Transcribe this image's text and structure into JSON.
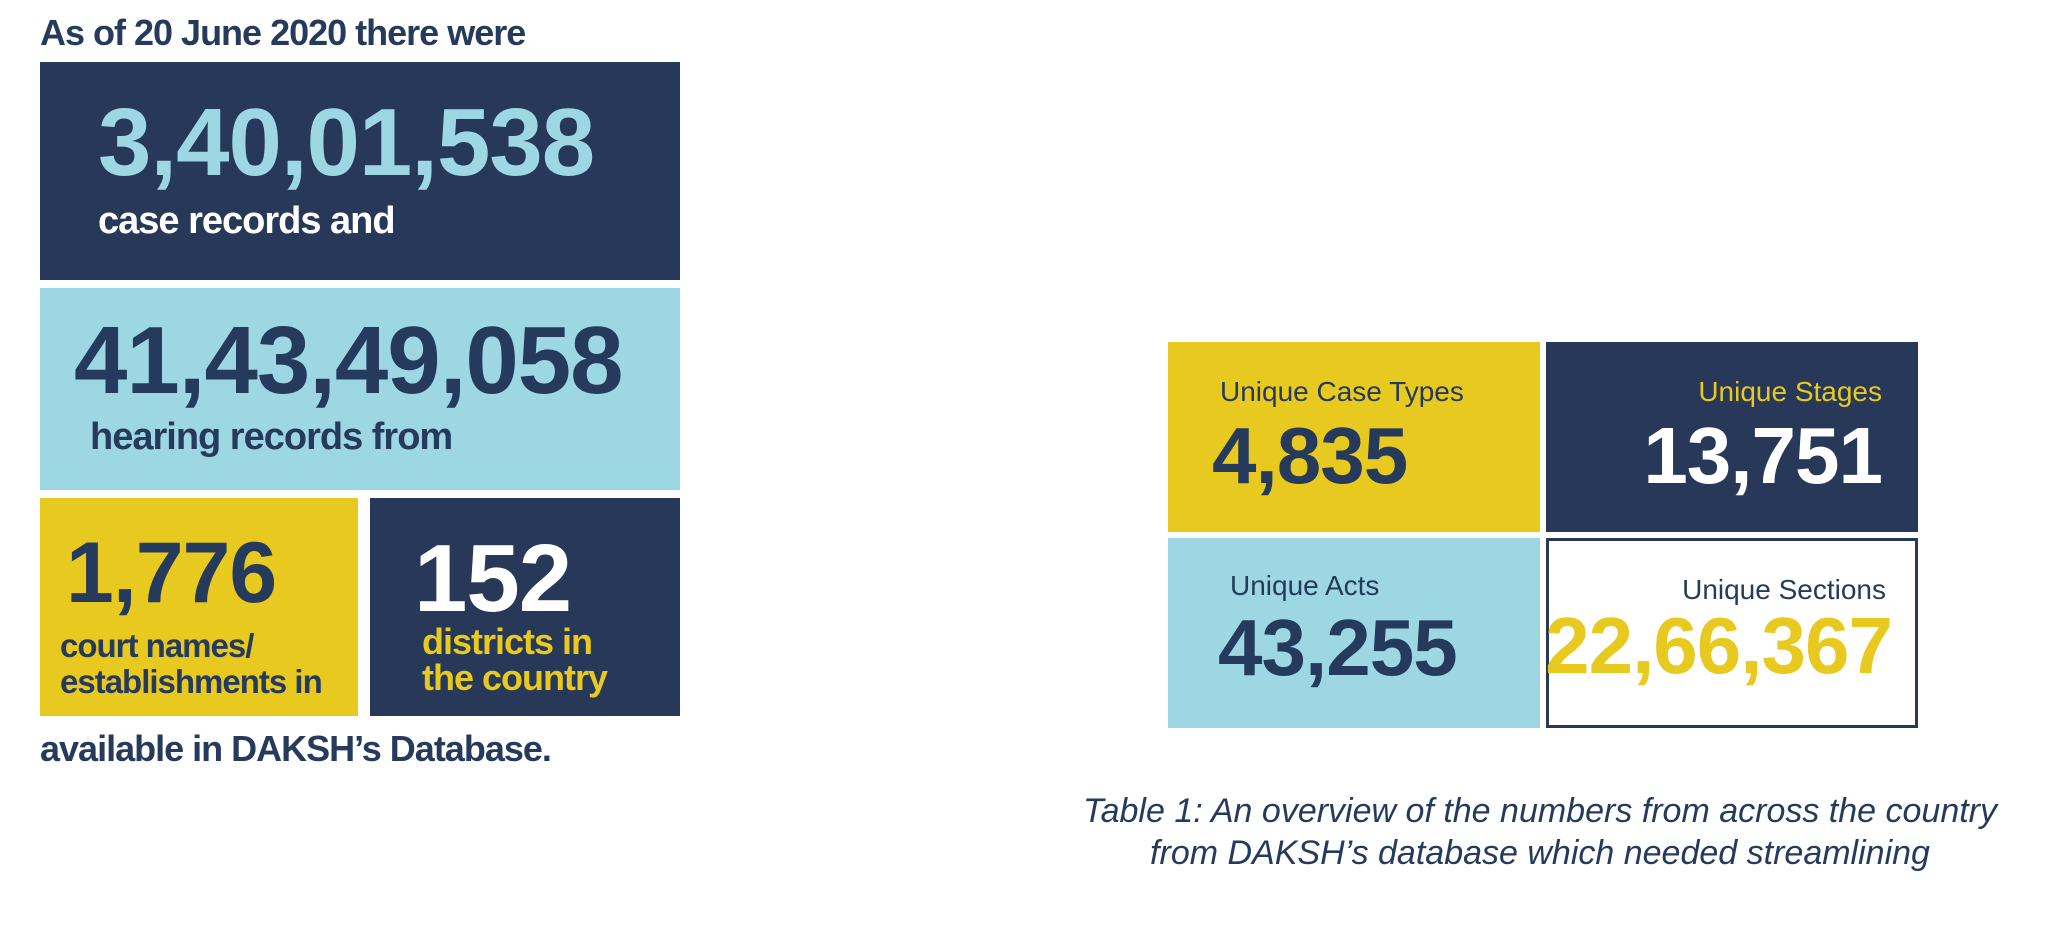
{
  "infographic": {
    "intro": "As of 20 June 2020 there were",
    "cases": {
      "number": "3,40,01,538",
      "label": "case records and"
    },
    "hearings": {
      "number": "41,43,49,058",
      "label": "hearing records  from"
    },
    "courts": {
      "number": "1,776",
      "label_line1": "court names/",
      "label_line2": "establishments in"
    },
    "districts": {
      "number": "152",
      "label_line1": "districts in",
      "label_line2": "the country"
    },
    "footer": "available in DAKSH’s Database."
  },
  "overview_table": {
    "tiles": [
      {
        "label": "Unique Case Types",
        "value": "4,835"
      },
      {
        "label": "Unique Stages",
        "value": "13,751"
      },
      {
        "label": "Unique Acts",
        "value": "43,255"
      },
      {
        "label": "Unique Sections",
        "value": "22,66,367"
      }
    ],
    "caption_line1": "Table 1:  An overview of the numbers from across the country",
    "caption_line2": "from DAKSH’s database which needed streamlining"
  },
  "colors": {
    "navy": "#273859",
    "light_blue": "#9ed7e4",
    "yellow": "#e8c920",
    "white": "#ffffff"
  }
}
